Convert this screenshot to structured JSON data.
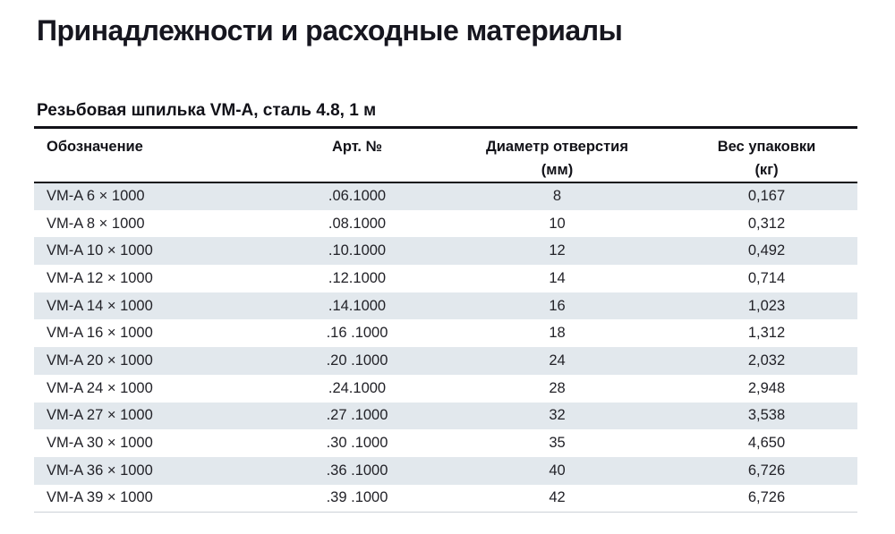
{
  "page": {
    "title": "Принадлежности и расходные материалы",
    "section_title": "Резьбовая шпилька VM-A, сталь 4.8, 1 м"
  },
  "colors": {
    "row_stripe": "#e2e8ed",
    "rule": "#121218",
    "text": "#222228",
    "bottom_rule": "#ccd1d7"
  },
  "table": {
    "columns": [
      {
        "label": "Обозначение",
        "sublabel": ""
      },
      {
        "label": "Арт. №",
        "sublabel": ""
      },
      {
        "label": "Диаметр отверстия",
        "sublabel": "(мм)"
      },
      {
        "label": "Вес упаковки",
        "sublabel": "(кг)"
      }
    ],
    "rows": [
      {
        "designation": "VM-A 6 × 1000",
        "art_no": ".06.1000",
        "hole_diameter_mm": "8",
        "package_weight_kg": "0,167"
      },
      {
        "designation": "VM-A 8 × 1000",
        "art_no": ".08.1000",
        "hole_diameter_mm": "10",
        "package_weight_kg": "0,312"
      },
      {
        "designation": "VM-A 10 × 1000",
        "art_no": ".10.1000",
        "hole_diameter_mm": "12",
        "package_weight_kg": "0,492"
      },
      {
        "designation": "VM-A 12 × 1000",
        "art_no": ".12.1000",
        "hole_diameter_mm": "14",
        "package_weight_kg": "0,714"
      },
      {
        "designation": "VM-A 14 × 1000",
        "art_no": ".14.1000",
        "hole_diameter_mm": "16",
        "package_weight_kg": "1,023"
      },
      {
        "designation": "VM-A 16 × 1000",
        "art_no": ".16 .1000",
        "hole_diameter_mm": "18",
        "package_weight_kg": "1,312"
      },
      {
        "designation": "VM-A 20 × 1000",
        "art_no": ".20 .1000",
        "hole_diameter_mm": "24",
        "package_weight_kg": "2,032"
      },
      {
        "designation": "VM-A 24 × 1000",
        "art_no": ".24.1000",
        "hole_diameter_mm": "28",
        "package_weight_kg": "2,948"
      },
      {
        "designation": "VM-A 27 × 1000",
        "art_no": ".27 .1000",
        "hole_diameter_mm": "32",
        "package_weight_kg": "3,538"
      },
      {
        "designation": "VM-A 30 × 1000",
        "art_no": ".30 .1000",
        "hole_diameter_mm": "35",
        "package_weight_kg": "4,650"
      },
      {
        "designation": "VM-A 36 × 1000",
        "art_no": ".36 .1000",
        "hole_diameter_mm": "40",
        "package_weight_kg": "6,726"
      },
      {
        "designation": "VM-A 39 × 1000",
        "art_no": ".39 .1000",
        "hole_diameter_mm": "42",
        "package_weight_kg": "6,726"
      }
    ]
  }
}
